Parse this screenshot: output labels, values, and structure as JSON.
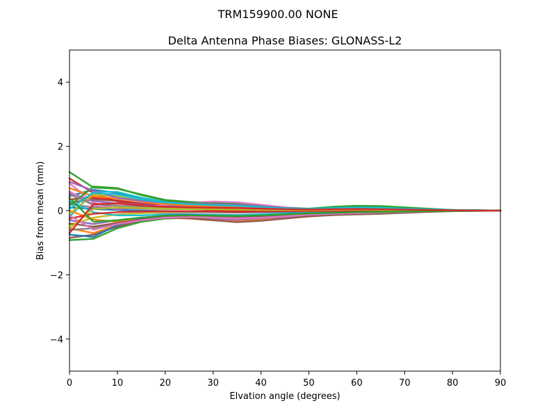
{
  "figure": {
    "suptitle": "TRM159900.00    NONE"
  },
  "chart_data": {
    "type": "line",
    "title": "Delta Antenna Phase Biases: GLONASS-L2",
    "xlabel": "Elvation angle (degrees)",
    "ylabel": "Bias from mean (mm)",
    "xlim": [
      0,
      90
    ],
    "ylim": [
      -5,
      5
    ],
    "x_ticks": [
      0,
      10,
      20,
      30,
      40,
      50,
      60,
      70,
      80,
      90
    ],
    "x_tick_labels": [
      "0",
      "10",
      "20",
      "30",
      "40",
      "50",
      "60",
      "70",
      "80",
      "90"
    ],
    "y_ticks": [
      -4,
      -2,
      0,
      2,
      4
    ],
    "y_tick_labels": [
      "−4",
      "−2",
      "0",
      "2",
      "4"
    ],
    "grid": false,
    "x": [
      0,
      5,
      10,
      15,
      20,
      25,
      30,
      35,
      40,
      45,
      50,
      55,
      60,
      65,
      70,
      75,
      80,
      85,
      90
    ],
    "series": [
      {
        "color": "#1f77b4",
        "values": [
          0.45,
          0.65,
          0.55,
          0.38,
          0.24,
          0.2,
          0.18,
          0.15,
          0.1,
          0.05,
          0.04,
          0.06,
          0.07,
          0.06,
          0.04,
          0.02,
          0.01,
          0.0,
          0.0
        ]
      },
      {
        "color": "#ff7f0e",
        "values": [
          -0.55,
          -0.7,
          -0.45,
          -0.28,
          -0.22,
          -0.25,
          -0.3,
          -0.32,
          -0.28,
          -0.22,
          -0.18,
          -0.12,
          -0.1,
          -0.08,
          -0.05,
          -0.02,
          -0.01,
          0.0,
          0.0
        ]
      },
      {
        "color": "#2ca02c",
        "values": [
          1.2,
          0.72,
          0.68,
          0.5,
          0.33,
          0.27,
          0.24,
          0.22,
          0.15,
          0.08,
          0.05,
          0.1,
          0.13,
          0.12,
          0.08,
          0.05,
          0.02,
          0.01,
          0.0
        ]
      },
      {
        "color": "#d62728",
        "values": [
          1.0,
          0.55,
          0.28,
          0.15,
          0.08,
          0.05,
          0.02,
          0.0,
          -0.02,
          -0.03,
          -0.02,
          -0.01,
          0.0,
          0.0,
          0.0,
          0.0,
          0.0,
          0.0,
          0.0
        ]
      },
      {
        "color": "#9467bd",
        "values": [
          -0.3,
          -0.42,
          -0.3,
          -0.22,
          -0.18,
          -0.2,
          -0.25,
          -0.28,
          -0.24,
          -0.2,
          -0.15,
          -0.12,
          -0.09,
          -0.06,
          -0.04,
          -0.02,
          -0.01,
          0.0,
          0.0
        ]
      },
      {
        "color": "#8c564b",
        "values": [
          0.25,
          0.35,
          0.3,
          0.22,
          0.16,
          0.14,
          0.12,
          0.1,
          0.08,
          0.05,
          0.04,
          0.06,
          0.08,
          0.06,
          0.04,
          0.02,
          0.01,
          0.0,
          0.0
        ]
      },
      {
        "color": "#e377c2",
        "values": [
          0.85,
          0.25,
          0.05,
          -0.05,
          -0.08,
          -0.1,
          -0.12,
          -0.13,
          -0.12,
          -0.1,
          -0.08,
          -0.06,
          -0.05,
          -0.04,
          -0.02,
          -0.01,
          0.0,
          0.0,
          0.0
        ]
      },
      {
        "color": "#7f7f7f",
        "values": [
          -0.6,
          -0.55,
          -0.4,
          -0.3,
          -0.22,
          -0.2,
          -0.2,
          -0.2,
          -0.18,
          -0.15,
          -0.12,
          -0.1,
          -0.08,
          -0.05,
          -0.03,
          -0.02,
          -0.01,
          0.0,
          0.0
        ]
      },
      {
        "color": "#bcbd22",
        "values": [
          -0.45,
          -0.22,
          -0.12,
          -0.08,
          -0.05,
          -0.04,
          -0.05,
          -0.06,
          -0.05,
          -0.04,
          -0.03,
          -0.02,
          -0.02,
          -0.01,
          -0.01,
          0.0,
          0.0,
          0.0,
          0.0
        ]
      },
      {
        "color": "#17becf",
        "values": [
          -0.2,
          0.6,
          0.58,
          0.4,
          0.28,
          0.22,
          0.2,
          0.18,
          0.13,
          0.08,
          0.06,
          0.09,
          0.11,
          0.1,
          0.07,
          0.04,
          0.02,
          0.01,
          0.0
        ]
      },
      {
        "color": "#1f77b4",
        "values": [
          0.1,
          0.05,
          0.02,
          0.0,
          -0.02,
          -0.03,
          -0.04,
          -0.05,
          -0.05,
          -0.04,
          -0.03,
          -0.02,
          -0.01,
          -0.01,
          0.0,
          0.0,
          0.0,
          0.0,
          0.0
        ]
      },
      {
        "color": "#ff7f0e",
        "values": [
          0.0,
          -0.28,
          -0.35,
          -0.25,
          -0.18,
          -0.16,
          -0.18,
          -0.2,
          -0.18,
          -0.14,
          -0.1,
          -0.08,
          -0.06,
          -0.05,
          -0.03,
          -0.02,
          -0.01,
          0.0,
          0.0
        ]
      },
      {
        "color": "#2ca02c",
        "values": [
          -0.92,
          -0.88,
          -0.55,
          -0.35,
          -0.25,
          -0.22,
          -0.22,
          -0.22,
          -0.2,
          -0.16,
          -0.12,
          -0.1,
          -0.08,
          -0.06,
          -0.04,
          -0.02,
          -0.01,
          0.0,
          0.0
        ]
      },
      {
        "color": "#d62728",
        "values": [
          0.35,
          0.4,
          0.32,
          0.22,
          0.15,
          0.12,
          0.1,
          0.08,
          0.06,
          0.04,
          0.03,
          0.04,
          0.05,
          0.04,
          0.03,
          0.02,
          0.01,
          0.0,
          0.0
        ]
      },
      {
        "color": "#9467bd",
        "values": [
          0.55,
          0.3,
          0.22,
          0.18,
          0.14,
          0.13,
          0.14,
          0.15,
          0.12,
          0.08,
          0.05,
          0.05,
          0.06,
          0.05,
          0.03,
          0.02,
          0.01,
          0.0,
          0.0
        ]
      },
      {
        "color": "#8c564b",
        "values": [
          -0.85,
          -0.75,
          -0.5,
          -0.3,
          -0.22,
          -0.24,
          -0.3,
          -0.36,
          -0.32,
          -0.25,
          -0.18,
          -0.14,
          -0.12,
          -0.1,
          -0.07,
          -0.04,
          -0.02,
          -0.01,
          0.0
        ]
      },
      {
        "color": "#e377c2",
        "values": [
          0.6,
          0.15,
          0.05,
          0.1,
          0.18,
          0.24,
          0.28,
          0.26,
          0.18,
          0.1,
          0.06,
          0.07,
          0.08,
          0.07,
          0.05,
          0.03,
          0.01,
          0.0,
          0.0
        ]
      },
      {
        "color": "#7f7f7f",
        "values": [
          0.2,
          0.1,
          0.08,
          0.06,
          0.05,
          0.05,
          0.05,
          0.04,
          0.03,
          0.02,
          0.02,
          0.03,
          0.04,
          0.03,
          0.02,
          0.01,
          0.0,
          0.0,
          0.0
        ]
      },
      {
        "color": "#bcbd22",
        "values": [
          -0.1,
          0.5,
          0.45,
          0.32,
          0.22,
          0.16,
          0.12,
          0.1,
          0.07,
          0.04,
          0.03,
          0.05,
          0.06,
          0.05,
          0.04,
          0.02,
          0.01,
          0.0,
          0.0
        ]
      },
      {
        "color": "#17becf",
        "values": [
          0.3,
          -0.05,
          -0.15,
          -0.15,
          -0.12,
          -0.12,
          -0.13,
          -0.14,
          -0.12,
          -0.1,
          -0.07,
          -0.05,
          -0.04,
          -0.03,
          -0.02,
          -0.01,
          0.0,
          0.0,
          0.0
        ]
      },
      {
        "color": "#1f77b4",
        "values": [
          -0.75,
          -0.82,
          -0.45,
          -0.25,
          -0.15,
          -0.14,
          -0.16,
          -0.18,
          -0.16,
          -0.12,
          -0.09,
          -0.07,
          -0.05,
          -0.04,
          -0.03,
          -0.02,
          -0.01,
          0.0,
          0.0
        ]
      },
      {
        "color": "#ff7f0e",
        "values": [
          0.7,
          0.45,
          0.38,
          0.28,
          0.2,
          0.16,
          0.14,
          0.12,
          0.09,
          0.05,
          0.03,
          0.05,
          0.06,
          0.05,
          0.03,
          0.02,
          0.01,
          0.0,
          0.0
        ]
      },
      {
        "color": "#2ca02c",
        "values": [
          0.15,
          0.75,
          0.7,
          0.48,
          0.32,
          0.25,
          0.22,
          0.2,
          0.14,
          0.08,
          0.06,
          0.12,
          0.15,
          0.14,
          0.1,
          0.06,
          0.02,
          0.01,
          0.0
        ]
      },
      {
        "color": "#d62728",
        "values": [
          -0.25,
          -0.1,
          -0.05,
          -0.03,
          -0.02,
          -0.02,
          -0.03,
          -0.04,
          -0.03,
          -0.02,
          -0.02,
          -0.01,
          -0.01,
          0.0,
          0.0,
          0.0,
          0.0,
          0.0,
          0.0
        ]
      },
      {
        "color": "#9467bd",
        "values": [
          0.9,
          0.62,
          0.4,
          0.3,
          0.25,
          0.22,
          0.2,
          0.18,
          0.14,
          0.08,
          0.04,
          0.04,
          0.05,
          0.04,
          0.03,
          0.02,
          0.01,
          0.0,
          0.0
        ]
      },
      {
        "color": "#8c564b",
        "values": [
          -0.4,
          -0.5,
          -0.38,
          -0.28,
          -0.2,
          -0.18,
          -0.2,
          -0.22,
          -0.2,
          -0.16,
          -0.12,
          -0.09,
          -0.07,
          -0.05,
          -0.03,
          -0.02,
          -0.01,
          0.0,
          0.0
        ]
      },
      {
        "color": "#e377c2",
        "values": [
          -0.15,
          -0.6,
          -0.42,
          -0.3,
          -0.22,
          -0.2,
          -0.22,
          -0.24,
          -0.22,
          -0.18,
          -0.13,
          -0.1,
          -0.08,
          -0.06,
          -0.04,
          -0.02,
          -0.01,
          0.0,
          0.0
        ]
      },
      {
        "color": "#7f7f7f",
        "values": [
          0.5,
          0.2,
          0.15,
          0.12,
          0.1,
          0.09,
          0.09,
          0.08,
          0.06,
          0.04,
          0.03,
          0.03,
          0.04,
          0.03,
          0.02,
          0.01,
          0.0,
          0.0,
          0.0
        ]
      },
      {
        "color": "#bcbd22",
        "values": [
          -0.55,
          0.05,
          0.1,
          0.08,
          0.06,
          0.05,
          0.04,
          0.03,
          0.02,
          0.01,
          0.01,
          0.02,
          0.03,
          0.02,
          0.01,
          0.01,
          0.0,
          0.0,
          0.0
        ]
      },
      {
        "color": "#17becf",
        "values": [
          0.05,
          0.55,
          0.5,
          0.35,
          0.25,
          0.2,
          0.17,
          0.15,
          0.11,
          0.07,
          0.05,
          0.08,
          0.1,
          0.09,
          0.06,
          0.04,
          0.02,
          0.01,
          0.0
        ]
      },
      {
        "color": "#2ca02c",
        "values": [
          0.4,
          -0.35,
          -0.3,
          -0.22,
          -0.16,
          -0.15,
          -0.16,
          -0.17,
          -0.15,
          -0.12,
          -0.09,
          -0.07,
          -0.05,
          -0.04,
          -0.03,
          -0.02,
          -0.01,
          0.0,
          0.0
        ]
      },
      {
        "color": "#d62728",
        "values": [
          -0.7,
          0.2,
          0.22,
          0.16,
          0.12,
          0.1,
          0.09,
          0.08,
          0.06,
          0.04,
          0.03,
          0.04,
          0.05,
          0.04,
          0.03,
          0.02,
          0.01,
          0.0,
          0.0
        ]
      }
    ]
  }
}
